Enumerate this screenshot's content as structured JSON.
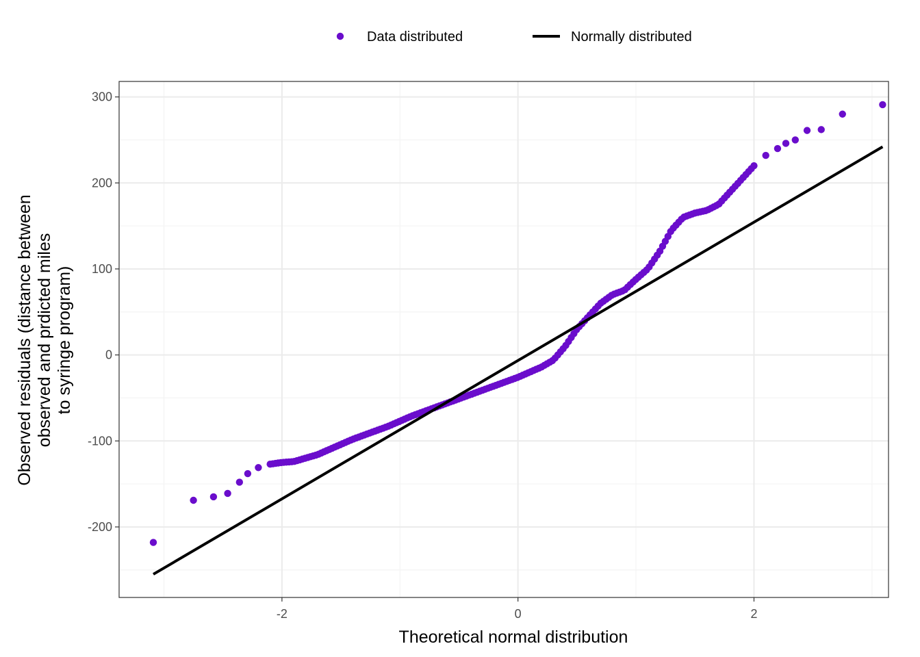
{
  "colors": {
    "points": "#6a0dcc",
    "line": "#000000",
    "grid_major": "#ebebeb",
    "grid_minor": "#f3f3f3",
    "panel_border": "#333333"
  },
  "chart_data": {
    "type": "scatter",
    "title": "",
    "xlabel": "Theoretical normal distribution",
    "ylabel_lines": [
      "Observed residuals (distance between",
      "observed and prdicted miles",
      "to syringe program)"
    ],
    "xlim": [
      -3.38,
      3.14
    ],
    "ylim": [
      -282,
      318
    ],
    "x_ticks": [
      -2,
      0,
      2
    ],
    "x_tick_labels": [
      "-2",
      "0",
      "2"
    ],
    "y_ticks": [
      -200,
      -100,
      0,
      100,
      200,
      300
    ],
    "y_tick_labels": [
      "-200",
      "-100",
      "0",
      "100",
      "200",
      "300"
    ],
    "grid": true,
    "legend": {
      "position": "top",
      "entries": [
        {
          "label": "Data distributed",
          "kind": "point"
        },
        {
          "label": "Normally distributed",
          "kind": "line"
        }
      ]
    },
    "series": [
      {
        "name": "Data distributed",
        "kind": "points",
        "anchors_xy": [
          [
            -3.09,
            -218
          ],
          [
            -2.75,
            -169
          ],
          [
            -2.58,
            -165
          ],
          [
            -2.46,
            -161
          ],
          [
            -2.36,
            -148
          ],
          [
            -2.29,
            -138
          ],
          [
            -2.2,
            -131
          ],
          [
            -2.1,
            -127
          ],
          [
            -2.0,
            -125
          ],
          [
            -1.9,
            -124
          ],
          [
            -1.8,
            -120
          ],
          [
            -1.7,
            -116
          ],
          [
            -1.6,
            -110
          ],
          [
            -1.5,
            -104
          ],
          [
            -1.4,
            -98
          ],
          [
            -1.3,
            -93
          ],
          [
            -1.2,
            -88
          ],
          [
            -1.1,
            -83
          ],
          [
            -1.0,
            -77
          ],
          [
            -0.9,
            -71
          ],
          [
            -0.8,
            -66
          ],
          [
            -0.7,
            -61
          ],
          [
            -0.6,
            -56
          ],
          [
            -0.5,
            -51
          ],
          [
            -0.4,
            -46
          ],
          [
            -0.3,
            -41
          ],
          [
            -0.2,
            -36
          ],
          [
            -0.1,
            -31
          ],
          [
            0.0,
            -26
          ],
          [
            0.1,
            -20
          ],
          [
            0.2,
            -14
          ],
          [
            0.3,
            -6
          ],
          [
            0.4,
            10
          ],
          [
            0.5,
            30
          ],
          [
            0.6,
            45
          ],
          [
            0.7,
            60
          ],
          [
            0.8,
            70
          ],
          [
            0.9,
            75
          ],
          [
            1.0,
            88
          ],
          [
            1.1,
            100
          ],
          [
            1.2,
            120
          ],
          [
            1.3,
            145
          ],
          [
            1.4,
            160
          ],
          [
            1.5,
            165
          ],
          [
            1.6,
            168
          ],
          [
            1.7,
            175
          ],
          [
            1.8,
            190
          ],
          [
            1.9,
            205
          ],
          [
            2.0,
            220
          ],
          [
            2.1,
            232
          ],
          [
            2.2,
            240
          ],
          [
            2.27,
            246
          ],
          [
            2.35,
            250
          ],
          [
            2.45,
            261
          ],
          [
            2.57,
            262
          ],
          [
            2.75,
            280
          ],
          [
            3.09,
            291
          ]
        ],
        "n_points": 180
      },
      {
        "name": "Normally distributed",
        "kind": "line",
        "x": [
          -3.09,
          3.09
        ],
        "y": [
          -255,
          242
        ]
      }
    ]
  }
}
